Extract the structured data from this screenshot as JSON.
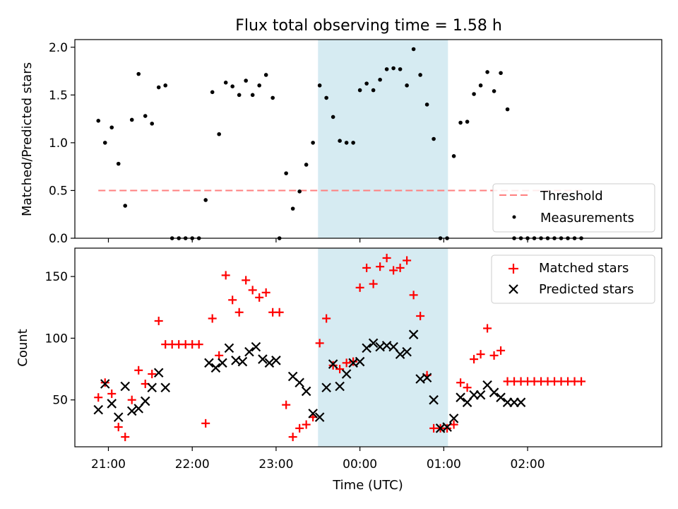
{
  "figure_title": "Flux total observing time = 1.58 h",
  "colors": {
    "highlight": "#add8e6",
    "threshold": "#ff7f7f",
    "measurements": "#000000",
    "matched": "#ff0000",
    "predicted": "#000000"
  },
  "chart_data": [
    {
      "type": "scatter",
      "ylabel": "Matched/Predicted stars",
      "xlim": [
        -0.4,
        6.6
      ],
      "ylim": [
        0,
        2.08
      ],
      "yticks": [
        0.0,
        0.5,
        1.0,
        1.5,
        2.0
      ],
      "ytick_labels": [
        "0.0",
        "0.5",
        "1.0",
        "1.5",
        "2.0"
      ],
      "xticks": [
        0,
        1,
        2,
        3,
        4,
        5
      ],
      "highlight_span": [
        2.5,
        4.05
      ],
      "threshold": {
        "value": 0.5,
        "x_range": [
          -0.12,
          5.65
        ],
        "style": "dashed"
      },
      "legend": {
        "position": "lower-right",
        "entries": [
          "Threshold",
          "Measurements"
        ]
      },
      "series": [
        {
          "name": "Measurements",
          "marker": "dot",
          "x": [
            -0.12,
            -0.04,
            0.04,
            0.12,
            0.2,
            0.28,
            0.36,
            0.44,
            0.52,
            0.6,
            0.68,
            0.76,
            0.84,
            0.92,
            1.0,
            1.08,
            1.16,
            1.24,
            1.32,
            1.4,
            1.48,
            1.56,
            1.64,
            1.72,
            1.8,
            1.88,
            1.96,
            2.04,
            2.12,
            2.2,
            2.28,
            2.36,
            2.44,
            2.52,
            2.6,
            2.68,
            2.76,
            2.84,
            2.92,
            3.0,
            3.08,
            3.16,
            3.24,
            3.32,
            3.4,
            3.48,
            3.56,
            3.64,
            3.72,
            3.8,
            3.88,
            3.96,
            4.04,
            4.12,
            4.2,
            4.28,
            4.36,
            4.44,
            4.52,
            4.6,
            4.68,
            4.76,
            4.84,
            4.92,
            5.0,
            5.08,
            5.16,
            5.24,
            5.32,
            5.4,
            5.48,
            5.56,
            5.64
          ],
          "y": [
            1.23,
            1.0,
            1.16,
            0.78,
            0.34,
            1.24,
            1.72,
            1.28,
            1.2,
            1.58,
            1.6,
            0.0,
            0.0,
            0.0,
            0.0,
            0.0,
            0.4,
            1.53,
            1.09,
            1.63,
            1.59,
            1.5,
            1.65,
            1.5,
            1.6,
            1.71,
            1.47,
            0.0,
            0.68,
            0.31,
            0.49,
            0.77,
            1.0,
            1.6,
            1.47,
            1.27,
            1.02,
            1.0,
            1.0,
            1.55,
            1.62,
            1.55,
            1.66,
            1.77,
            1.78,
            1.77,
            1.6,
            1.98,
            1.71,
            1.4,
            1.04,
            0.0,
            0.0,
            0.86,
            1.21,
            1.22,
            1.51,
            1.6,
            1.74,
            1.54,
            1.73,
            1.35,
            0.0,
            0.0,
            0.0,
            0.0,
            0.0,
            0.0,
            0.0,
            0.0,
            0.0,
            0.0,
            0.0
          ]
        },
        {
          "name": "Threshold",
          "marker": "dashed-line",
          "x": [
            -0.12,
            5.65
          ],
          "y": [
            0.5,
            0.5
          ]
        }
      ]
    },
    {
      "type": "scatter",
      "xlabel": "Time (UTC)",
      "ylabel": "Count",
      "xlim": [
        -0.4,
        6.6
      ],
      "ylim": [
        12,
        173
      ],
      "yticks": [
        50,
        100,
        150
      ],
      "ytick_labels": [
        "50",
        "100",
        "150"
      ],
      "xticks": [
        0,
        1,
        2,
        3,
        4,
        5
      ],
      "xtick_labels": [
        "21:00",
        "22:00",
        "23:00",
        "00:00",
        "01:00",
        "02:00"
      ],
      "highlight_span": [
        2.5,
        4.05
      ],
      "legend": {
        "position": "upper-right",
        "entries": [
          "Matched stars",
          "Predicted stars"
        ]
      },
      "series": [
        {
          "name": "Matched stars",
          "marker": "plus",
          "x": [
            -0.12,
            -0.04,
            0.04,
            0.12,
            0.2,
            0.28,
            0.36,
            0.44,
            0.52,
            0.6,
            0.68,
            0.76,
            0.84,
            0.92,
            1.0,
            1.08,
            1.16,
            1.24,
            1.32,
            1.4,
            1.48,
            1.56,
            1.64,
            1.72,
            1.8,
            1.88,
            1.96,
            2.04,
            2.12,
            2.2,
            2.28,
            2.36,
            2.44,
            2.52,
            2.6,
            2.68,
            2.76,
            2.84,
            2.92,
            3.0,
            3.08,
            3.16,
            3.24,
            3.32,
            3.4,
            3.48,
            3.56,
            3.64,
            3.72,
            3.8,
            3.88,
            3.96,
            4.04,
            4.12,
            4.2,
            4.28,
            4.36,
            4.44,
            4.52,
            4.6,
            4.68,
            4.76,
            4.84,
            4.92,
            5.0,
            5.08,
            5.16,
            5.24,
            5.32,
            5.4,
            5.48,
            5.56,
            5.64
          ],
          "y": [
            52,
            64,
            55,
            28,
            20,
            50,
            74,
            63,
            71,
            114,
            95,
            95,
            95,
            95,
            95,
            95,
            31,
            116,
            86,
            151,
            131,
            121,
            147,
            139,
            133,
            137,
            121,
            121,
            46,
            20,
            27,
            30,
            36,
            96,
            116,
            78,
            75,
            80,
            81,
            141,
            157,
            144,
            158,
            165,
            155,
            157,
            163,
            135,
            118,
            70,
            27,
            27,
            27,
            30,
            64,
            60,
            83,
            87,
            108,
            86,
            90,
            65,
            65,
            65,
            65,
            65,
            65,
            65,
            65,
            65,
            65,
            65,
            65
          ]
        },
        {
          "name": "Predicted stars",
          "marker": "x",
          "x": [
            -0.12,
            -0.04,
            0.04,
            0.12,
            0.2,
            0.28,
            0.36,
            0.44,
            0.52,
            0.6,
            0.68,
            1.2,
            1.28,
            1.36,
            1.44,
            1.52,
            1.6,
            1.68,
            1.76,
            1.84,
            1.92,
            2.0,
            2.2,
            2.28,
            2.36,
            2.44,
            2.52,
            2.6,
            2.68,
            2.76,
            2.84,
            2.92,
            3.0,
            3.08,
            3.16,
            3.24,
            3.32,
            3.4,
            3.48,
            3.56,
            3.64,
            3.72,
            3.8,
            3.88,
            3.96,
            4.04,
            4.12,
            4.2,
            4.28,
            4.36,
            4.44,
            4.52,
            4.6,
            4.68,
            4.76,
            4.84,
            4.92
          ],
          "y": [
            42,
            63,
            47,
            36,
            61,
            41,
            43,
            49,
            60,
            72,
            60,
            80,
            76,
            80,
            92,
            82,
            81,
            89,
            93,
            83,
            80,
            82,
            69,
            64,
            57,
            39,
            36,
            60,
            79,
            61,
            71,
            80,
            81,
            92,
            96,
            93,
            94,
            93,
            87,
            89,
            103,
            67,
            68,
            50,
            27,
            28,
            35,
            52,
            48,
            54,
            54,
            62,
            56,
            52,
            48,
            48,
            48
          ]
        }
      ]
    }
  ]
}
